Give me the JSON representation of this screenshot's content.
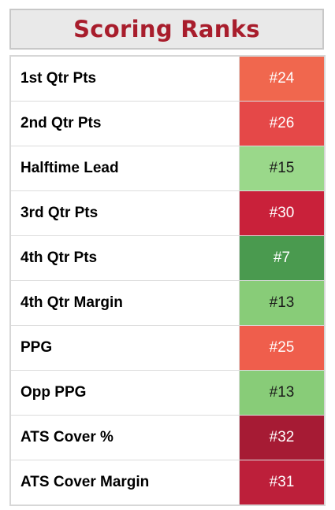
{
  "title": "Scoring Ranks",
  "rows": [
    {
      "label": "1st Qtr Pts",
      "rank": "#24",
      "color": "#f0674e",
      "text_color": "#ffffff"
    },
    {
      "label": "2nd Qtr Pts",
      "rank": "#26",
      "color": "#e54848",
      "text_color": "#ffffff"
    },
    {
      "label": "Halftime Lead",
      "rank": "#15",
      "color": "#9ad88a",
      "text_color": "#1a1a1a"
    },
    {
      "label": "3rd Qtr Pts",
      "rank": "#30",
      "color": "#c9213a",
      "text_color": "#ffffff"
    },
    {
      "label": "4th Qtr Pts",
      "rank": "#7",
      "color": "#4a9a4f",
      "text_color": "#ffffff"
    },
    {
      "label": "4th Qtr Margin",
      "rank": "#13",
      "color": "#88cc78",
      "text_color": "#1a1a1a"
    },
    {
      "label": "PPG",
      "rank": "#25",
      "color": "#ef5e4c",
      "text_color": "#ffffff"
    },
    {
      "label": "Opp PPG",
      "rank": "#13",
      "color": "#88cc78",
      "text_color": "#1a1a1a"
    },
    {
      "label": "ATS Cover %",
      "rank": "#32",
      "color": "#a61b34",
      "text_color": "#ffffff"
    },
    {
      "label": "ATS Cover Margin",
      "rank": "#31",
      "color": "#bd1f3a",
      "text_color": "#ffffff"
    }
  ]
}
